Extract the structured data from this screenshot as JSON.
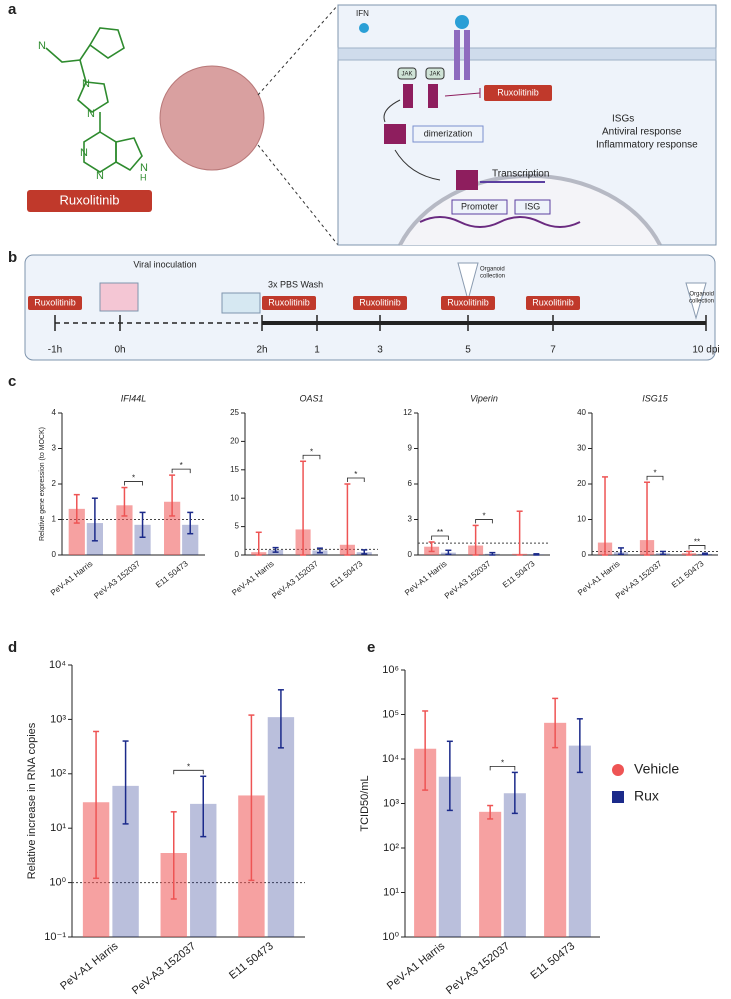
{
  "panel_labels": [
    "a",
    "b",
    "c",
    "d",
    "e"
  ],
  "diagram": {
    "drug": "Ruxolitinib",
    "atom_n": "N",
    "atom_h": "H",
    "ifn": "IFN",
    "jak": "JAK",
    "step": "dimerization",
    "effects": [
      "ISGs",
      "Antiviral response",
      "Inflammatory response"
    ],
    "transcription": "Transcription",
    "promoter": "Promoter",
    "gene": "ISG"
  },
  "timeline": {
    "drug": "Ruxolitinib",
    "ticks": [
      "-1h",
      "0h",
      "2h",
      "1",
      "3",
      "5",
      "7",
      "10 dpi"
    ],
    "inoculation": "Viral inoculation",
    "wash": "3x PBS Wash",
    "collection": [
      "Organoid",
      "collection"
    ]
  },
  "chart_data": [
    {
      "type": "bar",
      "title": "IFI44L",
      "ylabel": "Relative gene expression (to MOCK)",
      "categories": [
        "PeV-A1 Harris",
        "PeV-A3 152037",
        "E11 50473"
      ],
      "ylim": [
        0,
        4
      ],
      "yticks": [
        0,
        1,
        2,
        3,
        4
      ],
      "ref_line": 1,
      "series": [
        {
          "color": "#ee5454",
          "values": [
            1.3,
            1.4,
            1.5
          ],
          "err_low": [
            0.9,
            1.1,
            1.1
          ],
          "err_high": [
            1.7,
            1.9,
            2.25
          ]
        },
        {
          "color": "#1b2a8a",
          "values": [
            0.9,
            0.85,
            0.85
          ],
          "err_low": [
            0.4,
            0.5,
            0.6
          ],
          "err_high": [
            1.6,
            1.2,
            1.2
          ]
        }
      ],
      "annotations": [
        {
          "label": "*",
          "category": 1
        },
        {
          "label": "*",
          "category": 2
        }
      ]
    },
    {
      "type": "bar",
      "title": "OAS1",
      "categories": [
        "PeV-A1 Harris",
        "PeV-A3 152037",
        "E11 50473"
      ],
      "ylim": [
        0,
        25
      ],
      "yticks": [
        0,
        5,
        10,
        15,
        20,
        25
      ],
      "ref_line": 1,
      "series": [
        {
          "color": "#ee5454",
          "values": [
            0.5,
            4.5,
            1.8
          ],
          "err_low": [
            0,
            0,
            0
          ],
          "err_high": [
            4,
            16.5,
            12.5
          ]
        },
        {
          "color": "#1b2a8a",
          "values": [
            0.9,
            0.8,
            0.5
          ],
          "err_low": [
            0.5,
            0.4,
            0.2
          ],
          "err_high": [
            1.3,
            1.2,
            0.9
          ]
        }
      ],
      "annotations": [
        {
          "label": "*",
          "category": 1
        },
        {
          "label": "*",
          "category": 2
        }
      ]
    },
    {
      "type": "bar",
      "title": "Viperin",
      "categories": [
        "PeV-A1 Harris",
        "PeV-A3 152037",
        "E11 50473"
      ],
      "ylim": [
        0,
        12
      ],
      "yticks": [
        0,
        3,
        6,
        9,
        12
      ],
      "ref_line": 1,
      "series": [
        {
          "color": "#ee5454",
          "values": [
            0.7,
            0.8,
            0.1
          ],
          "err_low": [
            0.3,
            0,
            0
          ],
          "err_high": [
            1.1,
            2.5,
            3.7
          ]
        },
        {
          "color": "#1b2a8a",
          "values": [
            0.2,
            0.1,
            0.05
          ],
          "err_low": [
            0.05,
            0,
            0
          ],
          "err_high": [
            0.4,
            0.2,
            0.1
          ]
        }
      ],
      "annotations": [
        {
          "label": "**",
          "category": 0
        },
        {
          "label": "*",
          "category": 1
        }
      ]
    },
    {
      "type": "bar",
      "title": "ISG15",
      "categories": [
        "PeV-A1 Harris",
        "PeV-A3 152037",
        "E11 50473"
      ],
      "ylim": [
        0,
        40
      ],
      "yticks": [
        0,
        10,
        20,
        30,
        40
      ],
      "ref_line": 1,
      "series": [
        {
          "color": "#ee5454",
          "values": [
            3.5,
            4.2,
            0.5
          ],
          "err_low": [
            0,
            0,
            0
          ],
          "err_high": [
            22,
            20.5,
            1
          ]
        },
        {
          "color": "#1b2a8a",
          "values": [
            0.8,
            0.5,
            0.3
          ],
          "err_low": [
            0.2,
            0.2,
            0.1
          ],
          "err_high": [
            2,
            1,
            0.5
          ]
        }
      ],
      "annotations": [
        {
          "label": "*",
          "category": 1
        },
        {
          "label": "**",
          "category": 2
        }
      ]
    },
    {
      "type": "bar",
      "log": true,
      "ylabel": "Relative increase in RNA copies",
      "categories": [
        "PeV-A1 Harris",
        "PeV-A3 152037",
        "E11 50473"
      ],
      "ylim": [
        0.1,
        10000
      ],
      "yticks": [
        {
          "value": 0.1,
          "label": "10⁻¹"
        },
        {
          "value": 1,
          "label": "10⁰"
        },
        {
          "value": 10,
          "label": "10¹"
        },
        {
          "value": 100,
          "label": "10²"
        },
        {
          "value": 1000,
          "label": "10³"
        },
        {
          "value": 10000,
          "label": "10⁴"
        }
      ],
      "ref_line": 1,
      "series": [
        {
          "color": "#ee5454",
          "values": [
            30,
            3.5,
            40
          ],
          "err_low": [
            1.2,
            0.5,
            1.1
          ],
          "err_high": [
            600,
            20,
            1200
          ]
        },
        {
          "color": "#1b2a8a",
          "values": [
            60,
            28,
            1100
          ],
          "err_low": [
            12,
            7,
            300
          ],
          "err_high": [
            400,
            90,
            3500
          ]
        }
      ],
      "annotations": [
        {
          "label": "*",
          "category": 1
        }
      ]
    },
    {
      "type": "bar",
      "log": true,
      "ylabel": "TCID50/mL",
      "categories": [
        "PeV-A1 Harris",
        "PeV-A3 152037",
        "E11 50473"
      ],
      "ylim": [
        1,
        1000000
      ],
      "yticks": [
        {
          "value": 1,
          "label": "10⁰"
        },
        {
          "value": 10,
          "label": "10¹"
        },
        {
          "value": 100,
          "label": "10²"
        },
        {
          "value": 1000,
          "label": "10³"
        },
        {
          "value": 10000,
          "label": "10⁴"
        },
        {
          "value": 100000,
          "label": "10⁵"
        },
        {
          "value": 1000000,
          "label": "10⁶"
        }
      ],
      "series": [
        {
          "name": "Vehicle",
          "color": "#ee5454",
          "values": [
            17000,
            650,
            65000
          ],
          "err_low": [
            2000,
            450,
            18000
          ],
          "err_high": [
            120000,
            900,
            230000
          ]
        },
        {
          "name": "Rux",
          "color": "#1b2a8a",
          "values": [
            4000,
            1700,
            20000
          ],
          "err_low": [
            700,
            600,
            5000
          ],
          "err_high": [
            25000,
            5000,
            80000
          ]
        }
      ],
      "annotations": [
        {
          "label": "*",
          "category": 1
        }
      ]
    }
  ]
}
